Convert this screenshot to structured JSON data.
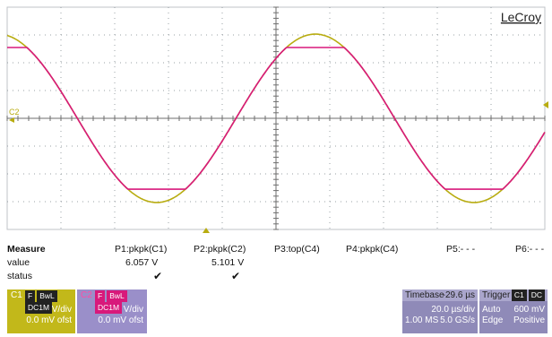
{
  "brand": "LeCroy",
  "colors": {
    "c1": "#b8ac10",
    "c2": "#d8197b",
    "grid_axis": "#6e6e6e",
    "grid_dots": "#9aa0a6",
    "c1_panel": "#c2b81a",
    "c2_panel": "#9a8fc9",
    "info_panel": "#8f8ab8"
  },
  "trace_label": "C2",
  "measure": {
    "title": "Measure",
    "row_labels": [
      "value",
      "status"
    ],
    "params": [
      {
        "name": "P1:pkpk(C1)",
        "value": "6.057 V",
        "status": "✔"
      },
      {
        "name": "P2:pkpk(C2)",
        "value": "5.101 V",
        "status": "✔"
      },
      {
        "name": "P3:top(C4)",
        "value": "",
        "status": ""
      },
      {
        "name": "P4:pkpk(C4)",
        "value": "",
        "status": ""
      },
      {
        "name": "P5:- - -",
        "value": "",
        "status": ""
      },
      {
        "name": "P6:- - -",
        "value": "",
        "status": ""
      }
    ]
  },
  "channels": [
    {
      "name": "C1",
      "tags": [
        "F",
        "BwL",
        "DC1M"
      ],
      "vdiv": "1.00 V/div",
      "offset": "0.0 mV ofst"
    },
    {
      "name": "C2",
      "tags": [
        "F",
        "BwL",
        "DC1M"
      ],
      "vdiv": "1.00 V/div",
      "offset": "0.0 mV ofst"
    }
  ],
  "timebase": {
    "label": "Timebase",
    "delay": "-29.6 µs",
    "tdiv": "20.0 µs/div",
    "points": "1.00 MS",
    "rate": "5.0 GS/s"
  },
  "trigger": {
    "label": "Trigger",
    "source": "C1",
    "coupling": "DC",
    "mode": "Auto",
    "level": "600 mV",
    "type": "Edge",
    "slope": "Positive"
  },
  "chart_data": {
    "type": "line",
    "x_unit": "div",
    "y_unit": "div",
    "xlim": [
      0,
      10
    ],
    "ylim": [
      -4,
      4
    ],
    "grid": true,
    "series": [
      {
        "name": "C1",
        "form": "sine",
        "amplitude_div": 3.03,
        "period_div": 5.9,
        "phase_div": 0.15,
        "points": [
          [
            0,
            2.49
          ],
          [
            1.6,
            -1.6
          ],
          [
            2.2,
            -2.98
          ],
          [
            3.7,
            1.95
          ],
          [
            4.8,
            2.95
          ],
          [
            7.7,
            -2.96
          ],
          [
            9.9,
            2.95
          ]
        ]
      },
      {
        "name": "C2",
        "form": "clipped sine",
        "clip_high_div": 2.55,
        "clip_low_div": -2.55,
        "points": [
          [
            0,
            2.49
          ],
          [
            1.6,
            -1.6
          ],
          [
            2.2,
            -2.55
          ],
          [
            3.7,
            1.95
          ],
          [
            4.8,
            2.55
          ],
          [
            7.7,
            -2.55
          ],
          [
            9.9,
            2.55
          ]
        ]
      }
    ]
  }
}
